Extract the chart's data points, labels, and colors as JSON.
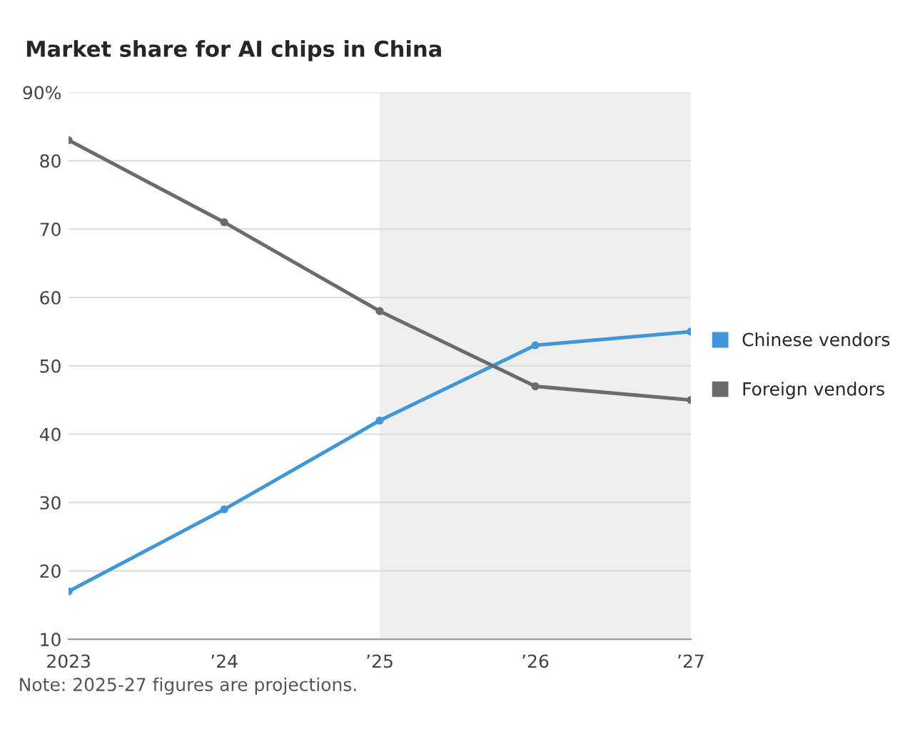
{
  "chart_data": {
    "type": "line",
    "title": "Market share for AI chips in China",
    "x": [
      2023,
      2024,
      2025,
      2026,
      2027
    ],
    "series": [
      {
        "name": "Chinese vendors",
        "color": "#3f97d9",
        "values": [
          17,
          29,
          42,
          53,
          55
        ]
      },
      {
        "name": "Foreign vendors",
        "color": "#6b6b6b",
        "values": [
          83,
          71,
          58,
          47,
          45
        ]
      }
    ],
    "xlim": [
      2023,
      2027
    ],
    "xticks": [
      {
        "value": 2023,
        "label": "2023"
      },
      {
        "value": 2024,
        "label": "’24"
      },
      {
        "value": 2025,
        "label": "’25"
      },
      {
        "value": 2026,
        "label": "’26"
      },
      {
        "value": 2027,
        "label": "’27"
      }
    ],
    "ylim": [
      10,
      90
    ],
    "yticks": [
      10,
      20,
      30,
      40,
      50,
      60,
      70,
      80,
      {
        "value": 90,
        "label": "90%"
      }
    ],
    "bands": [
      {
        "axis": "x",
        "from": 2025,
        "to": 2027,
        "color": "#efefef"
      }
    ],
    "annotations": [
      "Note: 2025-27 figures are projections."
    ],
    "grid": "y",
    "legend": "right",
    "marker": "circle",
    "line_style": "solid"
  }
}
